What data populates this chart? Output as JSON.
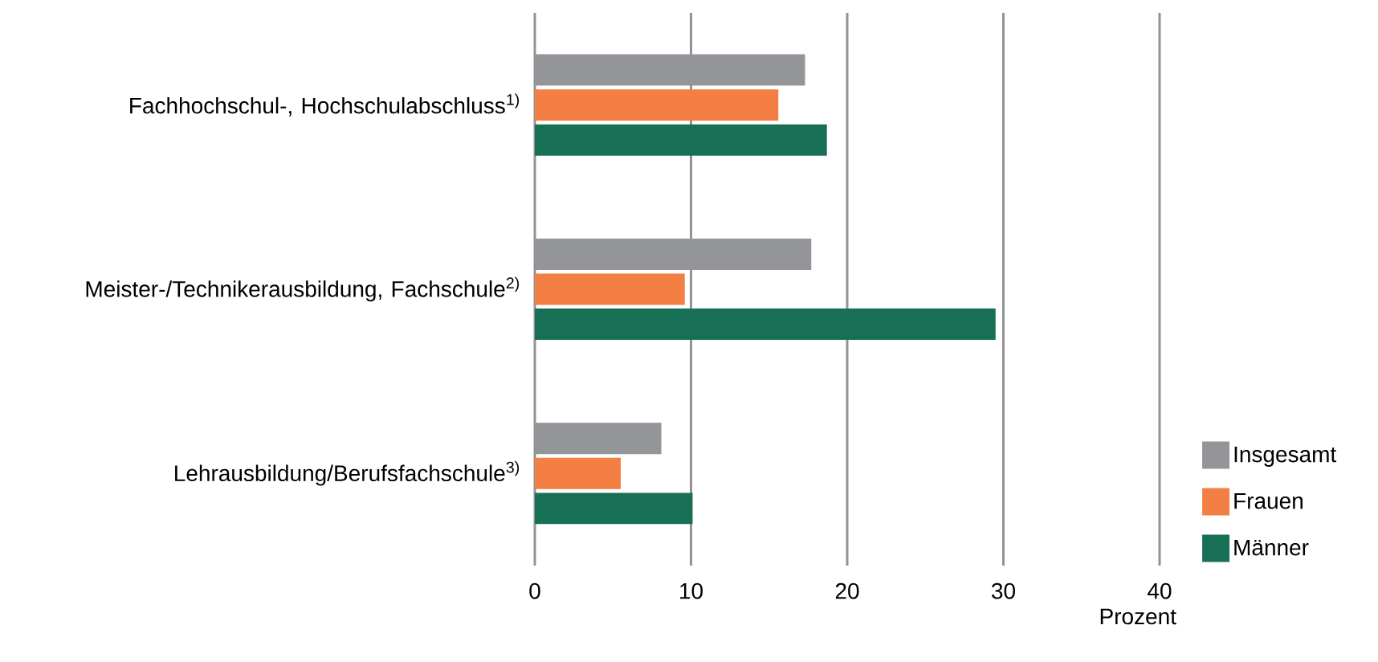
{
  "chart_data": {
    "type": "bar",
    "orientation": "horizontal",
    "xlabel": "Prozent",
    "categories": [
      "Fachhochschul-, Hochschulabschluss$^{1)}$",
      "Meister-/Technikerausbildung, Fachschule$^{2)}$",
      "Lehrausbildung/Berufsfachschule$^{3)}$"
    ],
    "series": [
      {
        "name": "Insgesamt",
        "color": "#939598",
        "values": [
          17.3,
          17.7,
          8.1
        ]
      },
      {
        "name": "Frauen",
        "color": "#f47f45",
        "values": [
          15.6,
          9.6,
          5.5
        ]
      },
      {
        "name": "Männer",
        "color": "#176f55",
        "values": [
          18.7,
          29.5,
          10.1
        ]
      }
    ],
    "xlim": [
      0,
      40
    ],
    "xticks": [
      0,
      10,
      20,
      30,
      40
    ],
    "grid": "x",
    "legend": "bottom right"
  }
}
